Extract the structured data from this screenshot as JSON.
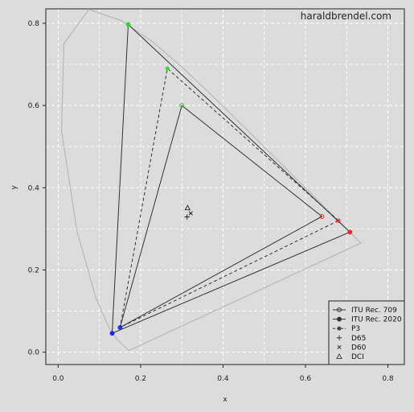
{
  "chart_data": {
    "type": "scatter",
    "title": "",
    "watermark": "haraldbrendel.com",
    "xlabel": "x",
    "ylabel": "y",
    "xlim": [
      -0.03,
      0.84
    ],
    "ylim": [
      -0.03,
      0.835
    ],
    "xticks": [
      0.0,
      0.2,
      0.4,
      0.6,
      0.8
    ],
    "yticks": [
      0.0,
      0.2,
      0.4,
      0.6,
      0.8
    ],
    "xtick_labels": [
      "0.0",
      "0.2",
      "0.4",
      "0.6",
      "0.8"
    ],
    "ytick_labels": [
      "0.0",
      "0.2",
      "0.4",
      "0.6",
      "0.8"
    ],
    "grid": true,
    "legend_position": "bottom-right",
    "spectral_locus": {
      "x": [
        0.1741,
        0.1738,
        0.1733,
        0.1726,
        0.1714,
        0.1689,
        0.1644,
        0.1566,
        0.144,
        0.1241,
        0.0913,
        0.0454,
        0.0082,
        0.0139,
        0.0743,
        0.1547,
        0.2296,
        0.3016,
        0.3731,
        0.4441,
        0.5125,
        0.5752,
        0.627,
        0.6658,
        0.6915,
        0.7079,
        0.7347
      ],
      "y": [
        0.005,
        0.0049,
        0.0048,
        0.0048,
        0.0051,
        0.0069,
        0.0109,
        0.0177,
        0.0297,
        0.0578,
        0.1327,
        0.295,
        0.5384,
        0.7502,
        0.8338,
        0.8059,
        0.7543,
        0.6923,
        0.6245,
        0.5547,
        0.4866,
        0.4242,
        0.3725,
        0.334,
        0.3083,
        0.292,
        0.2653
      ]
    },
    "series": [
      {
        "name": "ITU Rec. 709",
        "x": [
          0.64,
          0.3,
          0.15
        ],
        "y": [
          0.33,
          0.6,
          0.06
        ],
        "line": "solid",
        "marker": "open-circle"
      },
      {
        "name": "ITU Rec. 2020",
        "x": [
          0.708,
          0.17,
          0.131
        ],
        "y": [
          0.292,
          0.797,
          0.046
        ],
        "line": "solid",
        "marker": "filled-circle"
      },
      {
        "name": "P3",
        "x": [
          0.68,
          0.265,
          0.15
        ],
        "y": [
          0.32,
          0.69,
          0.06
        ],
        "line": "dashed",
        "marker": "star"
      }
    ],
    "white_points": [
      {
        "name": "D65",
        "x": 0.3127,
        "y": 0.329,
        "marker": "plus"
      },
      {
        "name": "D60",
        "x": 0.3217,
        "y": 0.3378,
        "marker": "cross"
      },
      {
        "name": "DCI",
        "x": 0.314,
        "y": 0.351,
        "marker": "triangle"
      }
    ],
    "vertex_colors": [
      "#ff2020",
      "#22dd22",
      "#2020ff"
    ],
    "colors": {
      "background": "#dcdcdc",
      "grid": "#ffffff",
      "axes": "#222222",
      "locus": "#b8b8b8",
      "series": "#333333"
    }
  }
}
